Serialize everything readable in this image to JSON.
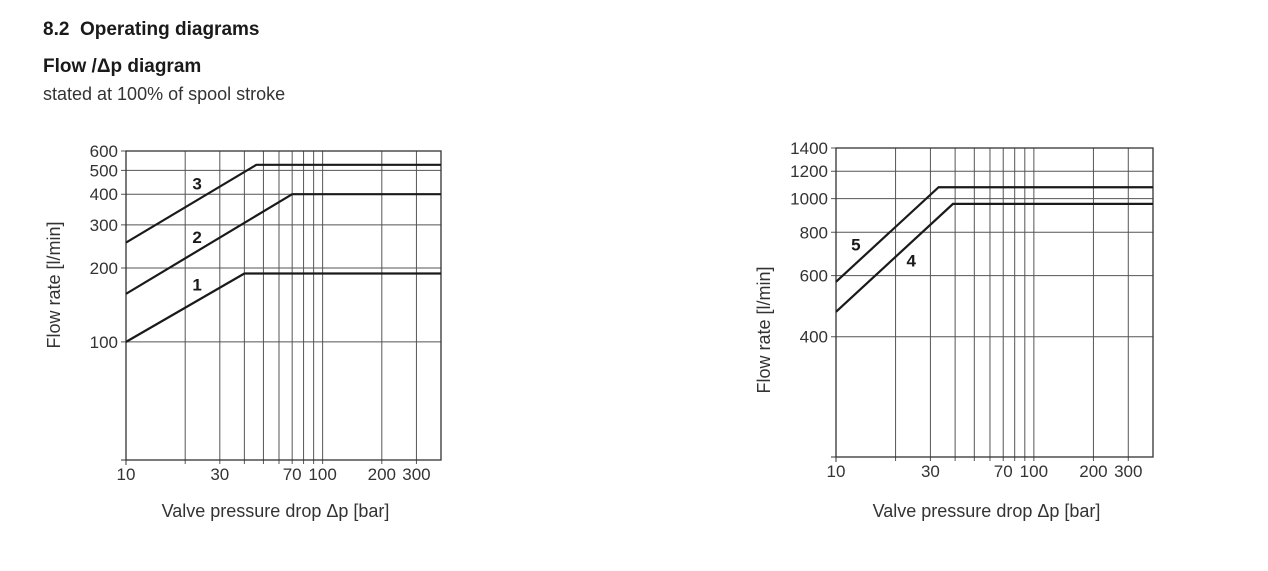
{
  "section": {
    "number": "8.2",
    "title": "Operating diagrams"
  },
  "diagram_title": "Flow /Δp diagram",
  "diagram_subtitle": "stated at 100% of spool stroke",
  "chart_data": [
    {
      "type": "line",
      "xscale": "log",
      "yscale": "log",
      "xlabel": "Valve pressure drop Δp [bar]",
      "ylabel": "Flow rate [l/min]",
      "xlim": [
        10,
        400
      ],
      "ylim": [
        33,
        600
      ],
      "xticks": [
        10,
        30,
        70,
        100,
        200,
        300
      ],
      "xgrid": [
        20,
        30,
        40,
        50,
        60,
        70,
        80,
        90,
        100,
        200,
        300
      ],
      "yticks": [
        100,
        200,
        300,
        400,
        500,
        600
      ],
      "grid": true,
      "series": [
        {
          "name": "1",
          "x": [
            10,
            40,
            400
          ],
          "y": [
            100,
            190,
            190
          ],
          "label_at": [
            23,
            171
          ]
        },
        {
          "name": "2",
          "x": [
            10,
            70,
            400
          ],
          "y": [
            157,
            400,
            400
          ],
          "label_at": [
            23,
            268
          ]
        },
        {
          "name": "3",
          "x": [
            10,
            46,
            400
          ],
          "y": [
            254,
            527,
            527
          ],
          "label_at": [
            23,
            442
          ]
        }
      ]
    },
    {
      "type": "line",
      "xscale": "log",
      "yscale": "log",
      "xlabel": "Valve pressure drop Δp [bar]",
      "ylabel": "Flow rate [l/min]",
      "xlim": [
        10,
        400
      ],
      "ylim": [
        180,
        1400
      ],
      "xticks": [
        10,
        30,
        70,
        100,
        200,
        300
      ],
      "xgrid": [
        20,
        30,
        40,
        50,
        60,
        70,
        80,
        90,
        100,
        200,
        300
      ],
      "yticks": [
        400,
        600,
        800,
        1000,
        1200,
        1400
      ],
      "grid": true,
      "series": [
        {
          "name": "4",
          "x": [
            10,
            39,
            400
          ],
          "y": [
            472,
            966,
            966
          ],
          "label_at": [
            24,
            664
          ]
        },
        {
          "name": "5",
          "x": [
            10,
            33,
            400
          ],
          "y": [
            576,
            1079,
            1079
          ],
          "label_at": [
            12.6,
            737
          ]
        }
      ]
    }
  ]
}
